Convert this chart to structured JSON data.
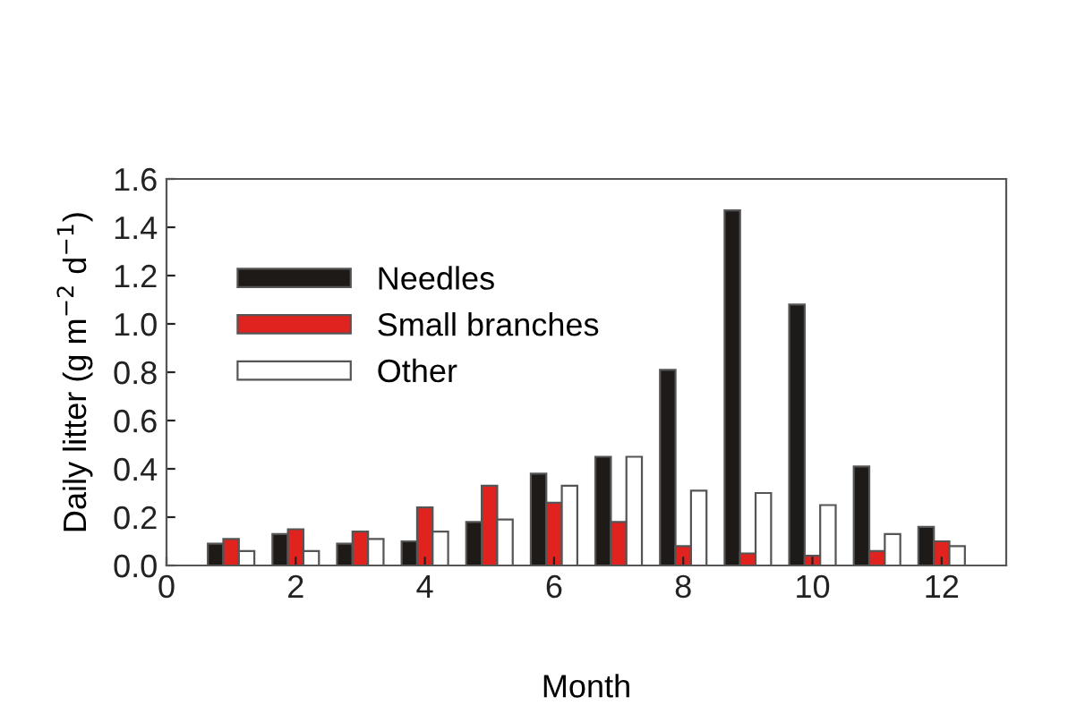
{
  "chart_data": {
    "type": "bar",
    "xlabel": "Month",
    "ylabel": "Daily litter (g m$^{−2}$ d$^{−1}$)",
    "x": [
      1,
      2,
      3,
      4,
      5,
      6,
      7,
      8,
      9,
      10,
      11,
      12
    ],
    "series": [
      {
        "name": "Needles",
        "color": "#1e1a18",
        "values": [
          0.09,
          0.13,
          0.09,
          0.1,
          0.18,
          0.38,
          0.45,
          0.81,
          1.47,
          1.08,
          0.41,
          0.16
        ]
      },
      {
        "name": "Small branches",
        "color": "#e0231f",
        "values": [
          0.11,
          0.15,
          0.14,
          0.24,
          0.33,
          0.26,
          0.18,
          0.08,
          0.05,
          0.04,
          0.06,
          0.1
        ]
      },
      {
        "name": "Other",
        "color": "#ffffff",
        "values": [
          0.06,
          0.06,
          0.11,
          0.14,
          0.19,
          0.33,
          0.45,
          0.31,
          0.3,
          0.25,
          0.13,
          0.08
        ]
      }
    ],
    "xlim": [
      0,
      13
    ],
    "xticks": [
      0,
      2,
      4,
      6,
      8,
      10,
      12
    ],
    "ylim": [
      0,
      1.6
    ],
    "yticks": [
      {
        "value": 0,
        "label": "0.0"
      },
      0.2,
      0.4,
      0.6,
      0.8,
      {
        "value": 1,
        "label": "1.0"
      },
      1.2,
      1.4,
      1.6
    ],
    "legend": "top left",
    "grid": false
  }
}
